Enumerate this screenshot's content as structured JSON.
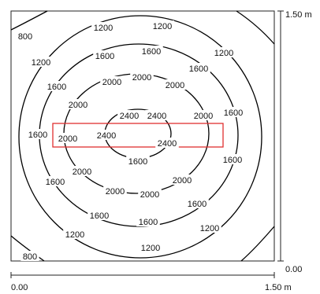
{
  "colors": {
    "line": "#000000",
    "border": "#222222",
    "highlight": "#e03030",
    "background": "#ffffff"
  },
  "right_axis": {
    "top_label": "1.50 m",
    "bottom_label": "0.00"
  },
  "bottom_axis": {
    "left_label": "0.00",
    "right_label": "1.50 m"
  },
  "contour_levels": [
    800,
    1200,
    1600,
    2000,
    2400
  ],
  "contour_labels": [
    {
      "text": "800",
      "level": 800
    },
    {
      "text": "1200",
      "level": 1200
    },
    {
      "text": "1200",
      "level": 1200
    },
    {
      "text": "1200",
      "level": 1200
    },
    {
      "text": "1200",
      "level": 1200
    },
    {
      "text": "1600",
      "level": 1600
    },
    {
      "text": "1600",
      "level": 1600
    },
    {
      "text": "1600",
      "level": 1600
    },
    {
      "text": "1600",
      "level": 1600
    },
    {
      "text": "2000",
      "level": 2000
    },
    {
      "text": "2000",
      "level": 2000
    },
    {
      "text": "2000",
      "level": 2000
    },
    {
      "text": "2000",
      "level": 2000
    },
    {
      "text": "2400",
      "level": 2400
    },
    {
      "text": "2400",
      "level": 2400
    },
    {
      "text": "1600",
      "level": 1600
    },
    {
      "text": "2000",
      "level": 2000
    },
    {
      "text": "2400",
      "level": 2400
    },
    {
      "text": "2000",
      "level": 2000
    },
    {
      "text": "1600",
      "level": 1600
    },
    {
      "text": "2400",
      "level": 2400
    },
    {
      "text": "2000",
      "level": 2000
    },
    {
      "text": "1600",
      "level": 1600
    },
    {
      "text": "1600",
      "level": 1600
    },
    {
      "text": "2000",
      "level": 2000
    },
    {
      "text": "2000",
      "level": 2000
    },
    {
      "text": "2000",
      "level": 2000
    },
    {
      "text": "1600",
      "level": 1600
    },
    {
      "text": "1600",
      "level": 1600
    },
    {
      "text": "1600",
      "level": 1600
    },
    {
      "text": "1600",
      "level": 1600
    },
    {
      "text": "1200",
      "level": 1200
    },
    {
      "text": "1200",
      "level": 1200
    },
    {
      "text": "1200",
      "level": 1200
    },
    {
      "text": "800",
      "level": 800
    }
  ]
}
